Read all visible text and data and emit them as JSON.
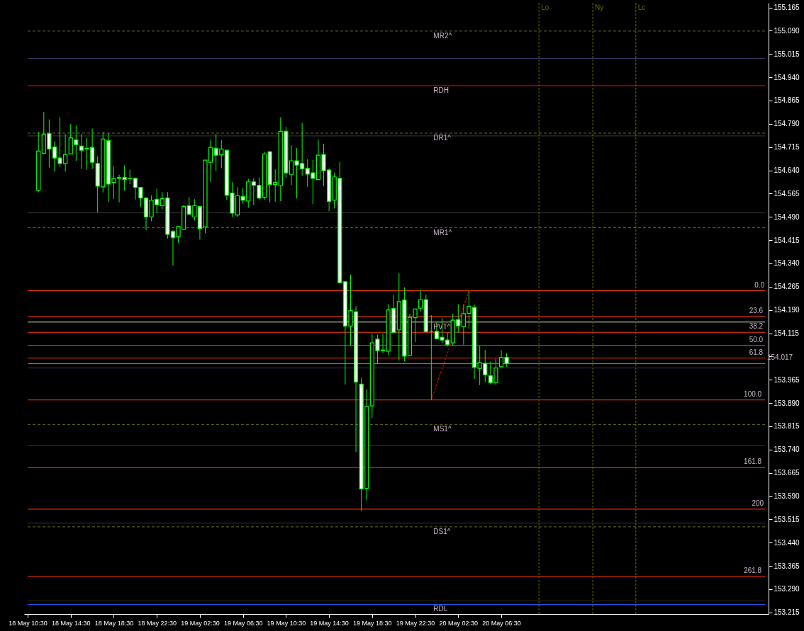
{
  "chart_data": {
    "type": "candlestick",
    "xlim": [
      "--05-18T10:30",
      "--05-21T07:00"
    ],
    "xticks": [
      {
        "value": "--05-18T10:30",
        "label": "18 May 10:30"
      },
      {
        "value": "--05-18T14:30",
        "label": "18 May 14:30"
      },
      {
        "value": "--05-18T18:30",
        "label": "18 May 18:30"
      },
      {
        "value": "--05-18T22:30",
        "label": "18 May 22:30"
      },
      {
        "value": "--05-19T02:30",
        "label": "19 May 02:30"
      },
      {
        "value": "--05-19T06:30",
        "label": "19 May 06:30"
      },
      {
        "value": "--05-19T10:30",
        "label": "19 May 10:30"
      },
      {
        "value": "--05-19T14:30",
        "label": "19 May 14:30"
      },
      {
        "value": "--05-19T18:30",
        "label": "19 May 18:30"
      },
      {
        "value": "--05-19T22:30",
        "label": "19 May 22:30"
      },
      {
        "value": "--05-20T02:30",
        "label": "20 May 02:30"
      },
      {
        "value": "--05-20T06:30",
        "label": "20 May 06:30"
      }
    ],
    "ylim": [
      153.21,
      155.18
    ],
    "yticks": [
      155.165,
      {
        "value": 155.09,
        "label": "155.090"
      },
      155.015,
      {
        "value": 154.94,
        "label": "154.940"
      },
      154.865,
      {
        "value": 154.79,
        "label": "154.790"
      },
      154.715,
      {
        "value": 154.64,
        "label": "154.640"
      },
      154.565,
      {
        "value": 154.49,
        "label": "154.490"
      },
      154.415,
      {
        "value": 154.34,
        "label": "154.340"
      },
      154.265,
      {
        "value": 154.19,
        "label": "154.190"
      },
      154.115,
      {
        "value": 154.04,
        "label": null
      },
      153.965,
      {
        "value": 153.89,
        "label": "153.890"
      },
      153.815,
      {
        "value": 153.74,
        "label": "153.740"
      },
      153.665,
      {
        "value": 153.59,
        "label": "153.590"
      },
      153.515,
      {
        "value": 153.44,
        "label": "153.440"
      },
      153.365,
      {
        "value": 153.29,
        "label": "153.290"
      },
      153.215
    ],
    "series": [
      {
        "type": "candlestick",
        "color": "#00ff00",
        "x": [
          "--05-18T11:30",
          "--05-18T12:00",
          "--05-18T12:30",
          "--05-18T13:00",
          "--05-18T13:30",
          "--05-18T14:00",
          "--05-18T14:30",
          "--05-18T15:00",
          "--05-18T15:30",
          "--05-18T16:00",
          "--05-18T16:30",
          "--05-18T17:00",
          "--05-18T17:30",
          "--05-18T18:00",
          "--05-18T18:30",
          "--05-18T19:00",
          "--05-18T19:30",
          "--05-18T20:00",
          "--05-18T20:30",
          "--05-18T21:00",
          "--05-18T21:30",
          "--05-18T22:00",
          "--05-18T22:30",
          "--05-18T23:00",
          "--05-18T23:30",
          "--05-19T00:00",
          "--05-19T00:30",
          "--05-19T01:00",
          "--05-19T01:30",
          "--05-19T02:00",
          "--05-19T02:30",
          "--05-19T03:00",
          "--05-19T03:30",
          "--05-19T04:00",
          "--05-19T04:30",
          "--05-19T05:00",
          "--05-19T05:30",
          "--05-19T06:00",
          "--05-19T06:30",
          "--05-19T07:00",
          "--05-19T07:30",
          "--05-19T08:00",
          "--05-19T08:30",
          "--05-19T09:00",
          "--05-19T09:30",
          "--05-19T10:00",
          "--05-19T10:30",
          "--05-19T11:00",
          "--05-19T11:30",
          "--05-19T12:00",
          "--05-19T12:30",
          "--05-19T13:00",
          "--05-19T13:30",
          "--05-19T14:00",
          "--05-19T14:30",
          "--05-19T15:00",
          "--05-19T15:30",
          "--05-19T16:00",
          "--05-19T16:30",
          "--05-19T17:00",
          "--05-19T17:30",
          "--05-19T18:00",
          "--05-19T18:30",
          "--05-19T19:00",
          "--05-19T19:30",
          "--05-19T20:00",
          "--05-19T20:30",
          "--05-19T21:00",
          "--05-19T21:30",
          "--05-19T22:00",
          "--05-19T22:30",
          "--05-19T23:00",
          "--05-19T23:30",
          "--05-20T00:00",
          "--05-20T00:30",
          "--05-20T01:00",
          "--05-20T01:30",
          "--05-20T02:00",
          "--05-20T02:30",
          "--05-20T03:00",
          "--05-20T03:30",
          "--05-20T04:00",
          "--05-20T04:30",
          "--05-20T05:00",
          "--05-20T05:30",
          "--05-20T06:00",
          "--05-20T06:30",
          "--05-20T07:00"
        ],
        "ohlc": [
          [
            154.576,
            154.764,
            154.569,
            154.702
          ],
          [
            154.695,
            154.828,
            154.693,
            154.757
          ],
          [
            154.759,
            154.804,
            154.649,
            154.709
          ],
          [
            154.715,
            154.734,
            154.636,
            154.68
          ],
          [
            154.68,
            154.811,
            154.651,
            154.662
          ],
          [
            154.662,
            154.757,
            154.636,
            154.691
          ],
          [
            154.693,
            154.789,
            154.693,
            154.745
          ],
          [
            154.738,
            154.784,
            154.67,
            154.723
          ],
          [
            154.718,
            154.757,
            154.645,
            154.705
          ],
          [
            154.711,
            154.745,
            154.642,
            154.709
          ],
          [
            154.714,
            154.775,
            154.645,
            154.666
          ],
          [
            154.662,
            154.685,
            154.505,
            154.589
          ],
          [
            154.587,
            154.764,
            154.569,
            154.741
          ],
          [
            154.736,
            154.76,
            154.538,
            154.596
          ],
          [
            154.601,
            154.653,
            154.548,
            154.614
          ],
          [
            154.617,
            154.626,
            154.537,
            154.614
          ],
          [
            154.617,
            154.656,
            154.575,
            154.61
          ],
          [
            154.615,
            154.642,
            154.595,
            154.614
          ],
          [
            154.614,
            154.617,
            154.546,
            154.585
          ],
          [
            154.585,
            154.585,
            154.523,
            154.551
          ],
          [
            154.551,
            154.553,
            154.447,
            154.49
          ],
          [
            154.49,
            154.559,
            154.476,
            154.544
          ],
          [
            154.547,
            154.581,
            154.502,
            154.529
          ],
          [
            154.526,
            154.57,
            154.514,
            154.549
          ],
          [
            154.551,
            154.57,
            154.42,
            154.434
          ],
          [
            154.443,
            154.448,
            154.334,
            154.423
          ],
          [
            154.427,
            154.461,
            154.406,
            154.459
          ],
          [
            154.45,
            154.529,
            154.45,
            154.524
          ],
          [
            154.526,
            154.554,
            154.499,
            154.499
          ],
          [
            154.49,
            154.547,
            154.478,
            154.526
          ],
          [
            154.524,
            154.524,
            154.417,
            154.452
          ],
          [
            154.458,
            154.673,
            154.437,
            154.673
          ],
          [
            154.666,
            154.737,
            154.602,
            154.714
          ],
          [
            154.711,
            154.757,
            154.638,
            154.689
          ],
          [
            154.69,
            154.737,
            154.647,
            154.709
          ],
          [
            154.705,
            154.705,
            154.544,
            154.56
          ],
          [
            154.567,
            154.602,
            154.49,
            154.502
          ],
          [
            154.496,
            154.586,
            154.49,
            154.558
          ],
          [
            154.556,
            154.584,
            154.532,
            154.544
          ],
          [
            154.541,
            154.613,
            154.519,
            154.603
          ],
          [
            154.603,
            154.615,
            154.528,
            154.592
          ],
          [
            154.592,
            154.617,
            154.546,
            154.551
          ],
          [
            154.553,
            154.699,
            154.545,
            154.693
          ],
          [
            154.7,
            154.703,
            154.537,
            154.594
          ],
          [
            154.594,
            154.644,
            154.539,
            154.601
          ],
          [
            154.591,
            154.811,
            154.541,
            154.766
          ],
          [
            154.766,
            154.78,
            154.616,
            154.632
          ],
          [
            154.627,
            154.721,
            154.593,
            154.671
          ],
          [
            154.671,
            154.712,
            154.55,
            154.657
          ],
          [
            154.662,
            154.793,
            154.623,
            154.645
          ],
          [
            154.646,
            154.676,
            154.587,
            154.628
          ],
          [
            154.632,
            154.674,
            154.532,
            154.614
          ],
          [
            154.61,
            154.739,
            154.61,
            154.689
          ],
          [
            154.691,
            154.726,
            154.589,
            154.639
          ],
          [
            154.641,
            154.646,
            154.508,
            154.54
          ],
          [
            154.544,
            154.633,
            154.517,
            154.619
          ],
          [
            154.614,
            154.667,
            154.278,
            154.278
          ],
          [
            154.281,
            154.283,
            153.95,
            154.138
          ],
          [
            154.138,
            154.304,
            154.074,
            154.188
          ],
          [
            154.184,
            154.202,
            153.732,
            153.958
          ],
          [
            153.951,
            153.972,
            153.542,
            153.613
          ],
          [
            153.615,
            153.934,
            153.576,
            153.879
          ],
          [
            153.881,
            154.112,
            153.842,
            154.084
          ],
          [
            154.096,
            154.11,
            154.016,
            154.059
          ],
          [
            154.061,
            154.114,
            154.052,
            154.059
          ],
          [
            154.057,
            154.209,
            154.045,
            154.19
          ],
          [
            154.195,
            154.238,
            154.118,
            154.118
          ],
          [
            154.126,
            154.308,
            154.027,
            154.217
          ],
          [
            154.222,
            154.263,
            154.025,
            154.041
          ],
          [
            154.044,
            154.178,
            154.044,
            154.166
          ],
          [
            154.165,
            154.193,
            154.087,
            154.193
          ],
          [
            154.196,
            154.254,
            154.185,
            154.223
          ],
          [
            154.223,
            154.239,
            154.12,
            154.12
          ],
          [
            154.121,
            154.173,
            153.9,
            154.121
          ],
          [
            154.121,
            154.15,
            154.095,
            154.097
          ],
          [
            154.102,
            154.164,
            154.083,
            154.093
          ],
          [
            154.093,
            154.117,
            154.072,
            154.078
          ],
          [
            154.084,
            154.178,
            154.074,
            154.157
          ],
          [
            154.159,
            154.209,
            154.117,
            154.139
          ],
          [
            154.136,
            154.208,
            154.078,
            154.178
          ],
          [
            154.179,
            154.252,
            154.129,
            154.202
          ],
          [
            154.198,
            154.208,
            153.968,
            154.005
          ],
          [
            154.002,
            154.074,
            153.948,
            154.02
          ],
          [
            154.018,
            154.061,
            153.957,
            153.981
          ],
          [
            153.978,
            154.024,
            153.95,
            153.956
          ],
          [
            153.956,
            154.033,
            153.948,
            154.003
          ],
          [
            154.007,
            154.06,
            154.005,
            154.037
          ],
          [
            154.037,
            154.051,
            154.007,
            154.017
          ]
        ],
        "colors": [
          "#000000",
          "#000000",
          "#ffffff",
          "#ffffff",
          "#ffffff",
          "#000000",
          "#000000",
          "#ffffff",
          "#ffffff",
          "#ffffff",
          "#ffffff",
          "#ffffff",
          "#000000",
          "#ffffff",
          "#000000",
          "#ffffff",
          "#ffffff",
          "#ffffff",
          "#ffffff",
          "#ffffff",
          "#ffffff",
          "#000000",
          "#ffffff",
          "#000000",
          "#ffffff",
          "#ffffff",
          "#000000",
          "#000000",
          "#ffffff",
          "#000000",
          "#ffffff",
          "#000000",
          "#000000",
          "#ffffff",
          "#000000",
          "#ffffff",
          "#ffffff",
          "#000000",
          "#ffffff",
          "#000000",
          "#ffffff",
          "#ffffff",
          "#000000",
          "#ffffff",
          "#000000",
          "#000000",
          "#ffffff",
          "#000000",
          "#ffffff",
          "#ffffff",
          "#ffffff",
          "#ffffff",
          "#000000",
          "#ffffff",
          "#ffffff",
          "#000000",
          "#ffffff",
          "#ffffff",
          "#000000",
          "#ffffff",
          "#ffffff",
          "#000000",
          "#000000",
          "#ffffff",
          "#ffffff",
          "#000000",
          "#ffffff",
          "#000000",
          "#ffffff",
          "#000000",
          "#000000",
          "#000000",
          "#ffffff",
          "#00ff00",
          "#ffffff",
          "#ffffff",
          "#ffffff",
          "#000000",
          "#ffffff",
          "#000000",
          "#000000",
          "#ffffff",
          "#000000",
          "#ffffff",
          "#ffffff",
          "#000000",
          "#000000",
          "#ffffff"
        ]
      },
      {
        "type": "line",
        "color": "#ff0000",
        "line_style": "dotted",
        "x": [
          "--05-20T00:00",
          "--05-20T03:30"
        ],
        "values": [
          153.9,
          154.252
        ]
      }
    ],
    "ref_lines": [
      {
        "axis": "y",
        "value": 155.089,
        "color": "#6b6b23",
        "line_style": "dashed"
      },
      {
        "axis": "y",
        "value": 155.001,
        "color": "#3c3c6e"
      },
      {
        "axis": "y",
        "value": 154.913,
        "color": "#ff0000"
      },
      {
        "axis": "y",
        "value": 154.76,
        "color": "#6b6b23",
        "line_style": "dashed"
      },
      {
        "axis": "y",
        "value": 154.751,
        "color": "#3a3a3a"
      },
      {
        "axis": "y",
        "value": 154.503,
        "color": "#3a3a3a"
      },
      {
        "axis": "y",
        "value": 154.455,
        "color": "#6b6b23",
        "line_style": "dashed"
      },
      {
        "axis": "y",
        "value": 154.252,
        "color": "#ff3c00"
      },
      {
        "axis": "y",
        "value": 154.169,
        "color": "#ff3c00"
      },
      {
        "axis": "y",
        "value": 154.151,
        "color": "#e6e6c8"
      },
      {
        "axis": "y",
        "value": 154.118,
        "color": "#ff3c00"
      },
      {
        "axis": "y",
        "value": 154.076,
        "color": "#ff3c00"
      },
      {
        "axis": "y",
        "value": 154.035,
        "color": "#ff3c00"
      },
      {
        "axis": "y",
        "value": 154.017,
        "color": "#808080"
      },
      {
        "axis": "y",
        "value": 154.003,
        "color": "#33335a"
      },
      {
        "axis": "y",
        "value": 153.9,
        "color": "#ff3c00"
      },
      {
        "axis": "y",
        "value": 153.821,
        "color": "#6b6b23",
        "line_style": "dashed"
      },
      {
        "axis": "y",
        "value": 153.753,
        "color": "#3a3a3a"
      },
      {
        "axis": "y",
        "value": 153.682,
        "color": "#ff3c00"
      },
      {
        "axis": "y",
        "value": 153.548,
        "color": "#ff3c00"
      },
      {
        "axis": "y",
        "value": 153.503,
        "color": "#3a3a3a"
      },
      {
        "axis": "y",
        "value": 153.491,
        "color": "#6b6b23",
        "line_style": "dashed"
      },
      {
        "axis": "y",
        "value": 153.331,
        "color": "#ff3c00"
      },
      {
        "axis": "y",
        "value": 153.252,
        "color": "#3a2c22"
      },
      {
        "axis": "y",
        "value": 153.241,
        "color": "#1e64ff"
      },
      {
        "axis": "x",
        "value": "--05-20T10:00",
        "label": "Lo",
        "color": "#6b6b00",
        "line_style": "dotted"
      },
      {
        "axis": "x",
        "value": "--05-20T15:00",
        "label": "Ny",
        "color": "#6b6b00",
        "line_style": "dotted"
      },
      {
        "axis": "x",
        "value": "--05-20T19:00",
        "label": "Lc",
        "color": "#6b6b00",
        "line_style": "dotted"
      }
    ],
    "annotations": [
      {
        "text": "MR2^",
        "x": "--05-20T00:00",
        "y": 155.089
      },
      {
        "text": "RDH",
        "x": "--05-20T00:00",
        "y": 154.913
      },
      {
        "text": "DR1^",
        "x": "--05-20T00:00",
        "y": 154.76
      },
      {
        "text": "MR1^",
        "x": "--05-20T00:00",
        "y": 154.455
      },
      {
        "text": "PVT^",
        "x": "--05-20T00:00",
        "y": 154.151
      },
      {
        "text": "MS1^",
        "x": "--05-20T00:00",
        "y": 153.821
      },
      {
        "text": "DS1^",
        "x": "--05-20T00:00",
        "y": 153.491
      },
      {
        "text": "RDL",
        "x": "--05-20T00:00",
        "y": 153.241
      },
      {
        "text": "0.0",
        "x": "--05-21T05:50",
        "y": 154.252
      },
      {
        "text": "23.6",
        "x": "--05-21T05:20",
        "y": 154.169
      },
      {
        "text": "38.2",
        "x": "--05-21T05:20",
        "y": 154.118
      },
      {
        "text": "50.0",
        "x": "--05-21T05:20",
        "y": 154.076
      },
      {
        "text": "61.8",
        "x": "--05-21T05:20",
        "y": 154.035
      },
      {
        "text": "100.0",
        "x": "--05-21T04:50",
        "y": 153.9
      },
      {
        "text": "161.8",
        "x": "--05-21T04:50",
        "y": 153.682
      },
      {
        "text": "200",
        "x": "--05-21T05:35",
        "y": 153.548
      },
      {
        "text": "261.8",
        "x": "--05-21T04:50",
        "y": 153.331
      },
      {
        "text": "154.017",
        "x": "--05-21T07:00",
        "y": 154.017
      }
    ]
  }
}
